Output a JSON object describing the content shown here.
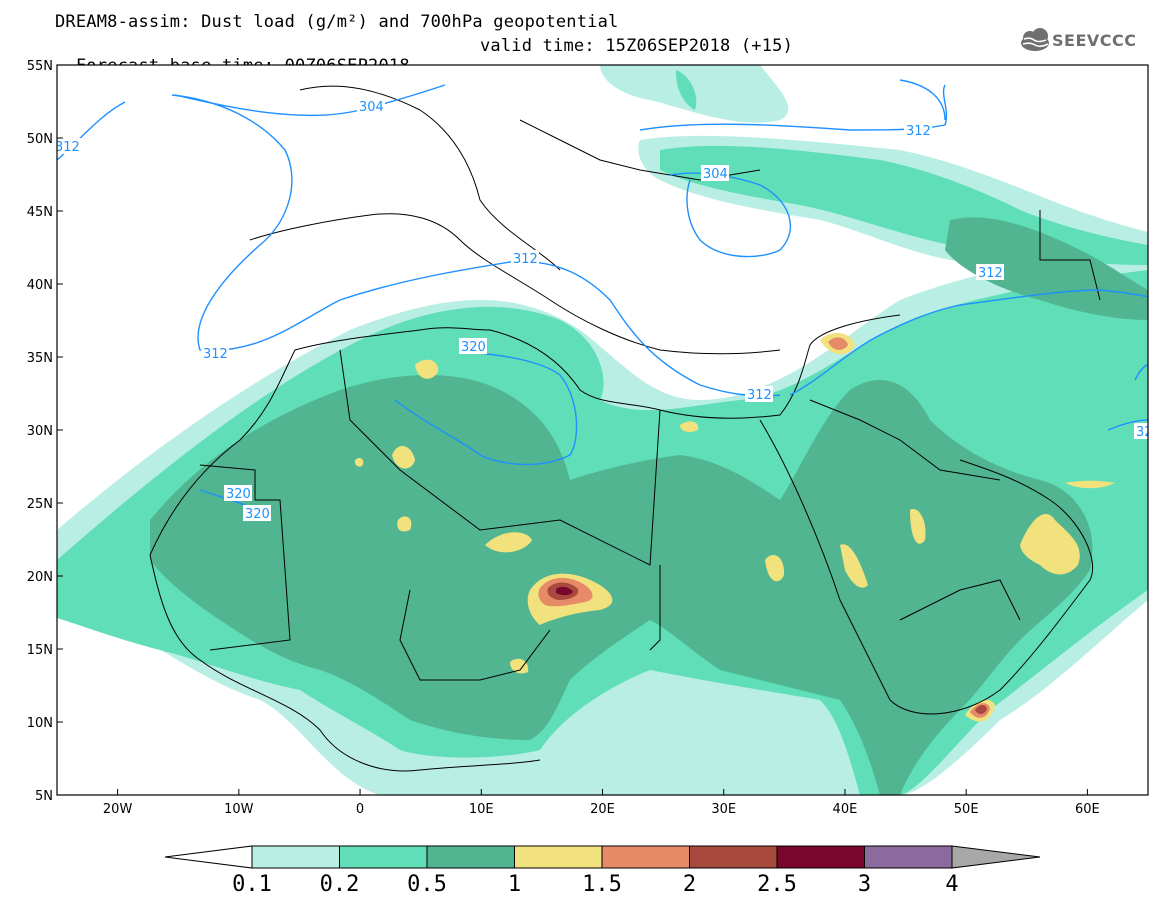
{
  "header": {
    "title": "DREAM8-assim: Dust load (g/m²) and 700hPa geopotential",
    "base_time": "Forecast base time: 00Z06SEP2018",
    "valid_time": "valid time: 15Z06SEP2018 (+15)"
  },
  "logo": {
    "text": "SEEVCCC",
    "icon": "cloud-logo-icon"
  },
  "map": {
    "lat_labels": [
      "55N",
      "50N",
      "45N",
      "40N",
      "35N",
      "30N",
      "25N",
      "20N",
      "15N",
      "10N",
      "5N"
    ],
    "lon_labels": [
      "20W",
      "10W",
      "0",
      "10E",
      "20E",
      "30E",
      "40E",
      "50E",
      "60E"
    ],
    "contour_labels": [
      "312",
      "304",
      "312",
      "304",
      "312",
      "312",
      "320",
      "312",
      "312",
      "320",
      "320",
      "312",
      "32"
    ],
    "colors": {
      "land_border": "#000000",
      "contour": "#1e90ff",
      "dust_0_1": "#b9eee5",
      "dust_0_2": "#5fdeb8",
      "dust_0_5": "#52b591",
      "dust_1": "#f1e27d",
      "dust_1_5": "#e68a67",
      "dust_2": "#a8493e",
      "dust_2_5": "#79062c",
      "dust_3": "#8c6a9e",
      "dust_4": "#a8a8a8"
    }
  },
  "colorbar": {
    "labels": [
      "0.1",
      "0.2",
      "0.5",
      "1",
      "1.5",
      "2",
      "2.5",
      "3",
      "4"
    ],
    "colors": [
      "#b9eee5",
      "#5fdeb8",
      "#52b591",
      "#f1e27d",
      "#e68a67",
      "#a8493e",
      "#79062c",
      "#8c6a9e"
    ]
  }
}
